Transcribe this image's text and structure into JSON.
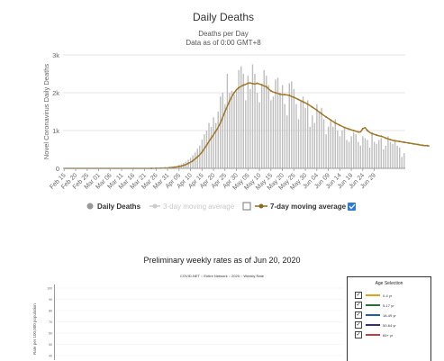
{
  "chart_data": [
    {
      "type": "bar",
      "title": "Daily Deaths",
      "subtitle": "Deaths per Day",
      "note": "Data as of 0:00 GMT+8",
      "ylabel": "Novel Coronavirus Daily Deaths",
      "ylim": [
        0,
        3000
      ],
      "yticks": [
        0,
        1000,
        2000,
        3000
      ],
      "ytick_labels": [
        "0",
        "1k",
        "2k",
        "3k"
      ],
      "grid": true,
      "legend": "bottom",
      "x_start": "2020-02-15",
      "xtick_labels": [
        "Feb 15",
        "Feb 20",
        "Feb 25",
        "Mar 01",
        "Mar 06",
        "Mar 11",
        "Mar 16",
        "Mar 21",
        "Mar 26",
        "Mar 31",
        "Apr 05",
        "Apr 10",
        "Apr 15",
        "Apr 20",
        "Apr 25",
        "Apr 30",
        "May 05",
        "May 10",
        "May 15",
        "May 20",
        "May 25",
        "May 30",
        "Jun 04",
        "Jun 09",
        "Jun 14",
        "Jun 19",
        "Jun 24",
        "Jun 29"
      ],
      "series": [
        {
          "name": "Daily Deaths",
          "color": "#bdbdbd",
          "values": [
            0,
            0,
            0,
            0,
            0,
            0,
            0,
            0,
            0,
            0,
            0,
            0,
            0,
            0,
            0,
            0,
            0,
            0,
            0,
            0,
            0,
            0,
            0,
            0,
            0,
            0,
            0,
            0,
            0,
            0,
            0,
            0,
            0,
            0,
            0,
            0,
            0,
            1,
            1,
            2,
            3,
            5,
            8,
            10,
            15,
            20,
            25,
            35,
            50,
            60,
            90,
            110,
            140,
            180,
            230,
            280,
            350,
            420,
            520,
            600,
            760,
            900,
            1000,
            1200,
            1100,
            1350,
            1200,
            1500,
            1900,
            2000,
            1700,
            2500,
            2000,
            2050,
            1950,
            2100,
            2600,
            2700,
            2500,
            1800,
            2450,
            2100,
            2750,
            2500,
            2000,
            1750,
            2200,
            2600,
            2450,
            2200,
            1800,
            1900,
            2350,
            2400,
            2000,
            2200,
            1700,
            1400,
            2250,
            2300,
            2100,
            1700,
            1300,
            1800,
            1900,
            1600,
            1800,
            1100,
            1400,
            1200,
            1700,
            1500,
            1600,
            1300,
            900,
            1100,
            1250,
            1100,
            1300,
            1000,
            850,
            1000,
            1050,
            750,
            700,
            850,
            950,
            900,
            700,
            600,
            850,
            800,
            750,
            550,
            950,
            700,
            650,
            750,
            800,
            500,
            600,
            850,
            700,
            650,
            750,
            600,
            550,
            300,
            400
          ]
        },
        {
          "name": "3-day moving average",
          "color": "#cccccc",
          "visible": false
        },
        {
          "name": "7-day moving average",
          "color": "#a0782a",
          "values": [
            0,
            0,
            0,
            0,
            0,
            0,
            0,
            0,
            0,
            0,
            0,
            0,
            0,
            0,
            0,
            0,
            0,
            0,
            0,
            0,
            0,
            0,
            0,
            0,
            0,
            0,
            0,
            0,
            0,
            0,
            0,
            0,
            0,
            0,
            0,
            0,
            0,
            0,
            1,
            1,
            2,
            3,
            5,
            6,
            9,
            12,
            17,
            23,
            30,
            40,
            50,
            60,
            80,
            100,
            130,
            160,
            200,
            250,
            300,
            360,
            430,
            520,
            610,
            710,
            800,
            890,
            980,
            1080,
            1200,
            1350,
            1500,
            1640,
            1780,
            1900,
            2000,
            2080,
            2130,
            2170,
            2200,
            2220,
            2250,
            2260,
            2240,
            2230,
            2250,
            2230,
            2210,
            2180,
            2160,
            2100,
            2050,
            2020,
            2000,
            1980,
            1960,
            1950,
            1950,
            1940,
            1930,
            1900,
            1880,
            1850,
            1820,
            1790,
            1760,
            1730,
            1700,
            1660,
            1620,
            1580,
            1540,
            1490,
            1450,
            1400,
            1360,
            1320,
            1280,
            1240,
            1200,
            1170,
            1140,
            1110,
            1080,
            1060,
            1040,
            1020,
            1000,
            980,
            960,
            960,
            1050,
            1080,
            1000,
            950,
            920,
            900,
            880,
            860,
            850,
            830,
            800,
            780,
            760,
            740,
            730,
            720,
            710,
            700,
            690,
            680,
            670,
            660,
            650,
            640,
            630,
            620,
            610,
            600,
            600,
            590
          ]
        }
      ],
      "legend_items": [
        {
          "label": "Daily Deaths",
          "marker": "circle",
          "color": "#999999",
          "enabled": true
        },
        {
          "label": "3-day moving average",
          "marker": "circle-line",
          "color": "#cccccc",
          "enabled": false
        },
        {
          "label": "7-day moving average",
          "marker": "circle-line",
          "color": "#8a6a20",
          "enabled": true
        }
      ]
    },
    {
      "type": "line",
      "title": "Preliminary weekly rates as of Jun 20, 2020",
      "subtitle": "COVID-NET :: Entire Network :: 2020 :: Weekly Rate",
      "ylabel": "Rate per 100,000 population",
      "yticks": [
        100,
        90,
        80,
        70,
        60,
        50,
        40
      ],
      "series": [
        {
          "name": "0-4 yr",
          "color": "#e0a020"
        },
        {
          "name": "5-17 yr",
          "color": "#2a6f3a"
        },
        {
          "name": "18-49 yr",
          "color": "#2060a0"
        },
        {
          "name": "50-64 yr",
          "color": "#333366"
        },
        {
          "name": "65+ yr",
          "color": "#c04040"
        }
      ]
    }
  ],
  "age_selection": {
    "title": "Age Selection",
    "items": [
      {
        "label": "0-4 yr",
        "checked": true,
        "color": "#e0a020"
      },
      {
        "label": "5-17 yr",
        "checked": true,
        "color": "#2a6f3a"
      },
      {
        "label": "18-49 yr",
        "checked": true,
        "color": "#2060a0"
      },
      {
        "label": "50-64 yr",
        "checked": true,
        "color": "#333366"
      },
      {
        "label": "65+ yr",
        "checked": true,
        "color": "#c04040"
      }
    ]
  },
  "legend_checkbox_checked": true
}
